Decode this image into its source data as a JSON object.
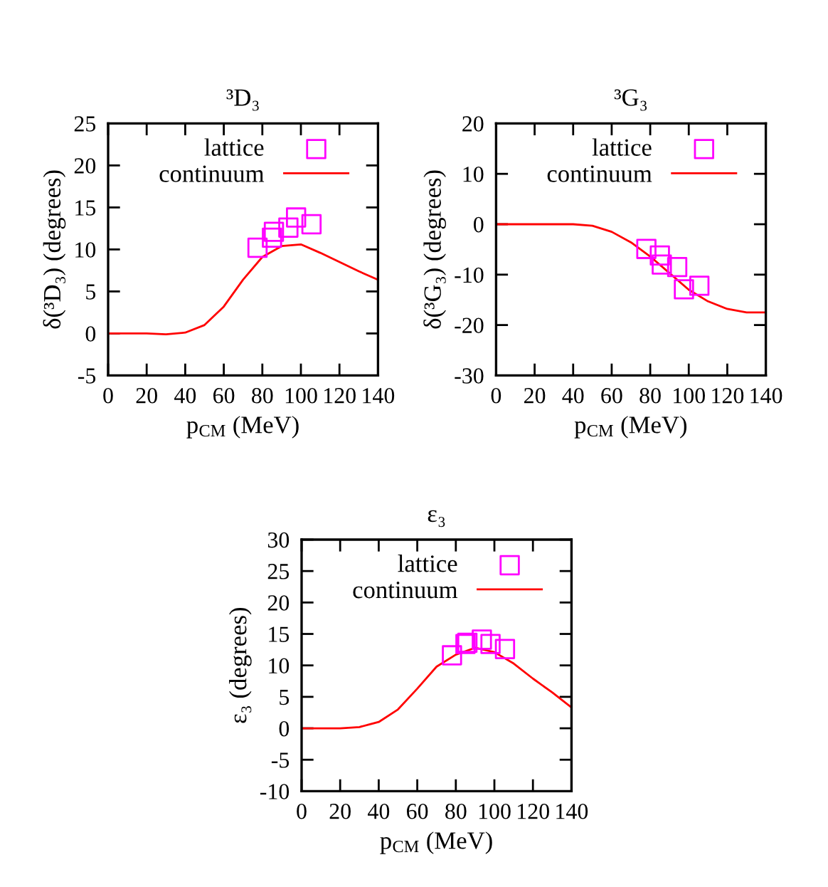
{
  "chart_data": [
    {
      "type": "line",
      "title": "³D₃",
      "xlabel": "p$_{CM}$ (MeV)",
      "ylabel": "δ(³D₃) (degrees)",
      "xlim": [
        0,
        140
      ],
      "xticks": [
        0,
        20,
        40,
        60,
        80,
        100,
        120,
        140
      ],
      "ylim": [
        -5,
        25
      ],
      "yticks": [
        -5,
        0,
        5,
        10,
        15,
        20,
        25
      ],
      "legend": "top right",
      "series": [
        {
          "name": "lattice",
          "type": "scatter",
          "marker": "square",
          "color": "#ff00ff",
          "x": [
            77.5,
            85,
            86,
            93.5,
            97.5,
            105.5
          ],
          "values": [
            10.2,
            11.4,
            12.1,
            12.6,
            13.8,
            13.0
          ]
        },
        {
          "name": "continuum",
          "type": "line",
          "marker": "none",
          "line_style": "solid",
          "color": "#ff0000",
          "x": [
            0,
            10,
            20,
            30,
            40,
            50,
            60,
            70,
            80,
            90,
            100,
            110,
            120,
            130,
            140
          ],
          "values": [
            0,
            0,
            0,
            -0.1,
            0.1,
            1.0,
            3.2,
            6.4,
            9.1,
            10.4,
            10.6,
            9.6,
            8.5,
            7.4,
            6.4
          ]
        }
      ]
    },
    {
      "type": "line",
      "title": "³G₃",
      "xlabel": "p$_{CM}$ (MeV)",
      "ylabel": "δ(³G₃) (degrees)",
      "xlim": [
        0,
        140
      ],
      "xticks": [
        0,
        20,
        40,
        60,
        80,
        100,
        120,
        140
      ],
      "ylim": [
        -30,
        20
      ],
      "yticks": [
        -30,
        -20,
        -10,
        0,
        10,
        20
      ],
      "legend": "top right",
      "series": [
        {
          "name": "lattice",
          "type": "scatter",
          "marker": "square",
          "color": "#ff00ff",
          "x": [
            78,
            85,
            86,
            94,
            97.5,
            105.5
          ],
          "values": [
            -4.9,
            -6.2,
            -8.0,
            -8.5,
            -12.9,
            -12.2
          ]
        },
        {
          "name": "continuum",
          "type": "line",
          "marker": "none",
          "line_style": "solid",
          "color": "#ff0000",
          "x": [
            0,
            10,
            20,
            30,
            40,
            50,
            60,
            70,
            80,
            90,
            100,
            110,
            120,
            130,
            140
          ],
          "values": [
            0,
            0,
            0,
            0,
            0,
            -0.3,
            -1.5,
            -3.6,
            -6.4,
            -9.7,
            -13.0,
            -15.3,
            -16.8,
            -17.5,
            -17.5
          ]
        }
      ]
    },
    {
      "type": "line",
      "title": "ε₃",
      "xlabel": "p$_{CM}$ (MeV)",
      "ylabel": "ε₃ (degrees)",
      "xlim": [
        0,
        140
      ],
      "xticks": [
        0,
        20,
        40,
        60,
        80,
        100,
        120,
        140
      ],
      "ylim": [
        -10,
        30
      ],
      "yticks": [
        -10,
        -5,
        0,
        5,
        10,
        15,
        20,
        25,
        30
      ],
      "legend": "top right",
      "series": [
        {
          "name": "lattice",
          "type": "scatter",
          "marker": "square",
          "color": "#ff00ff",
          "x": [
            78,
            85,
            86,
            93.5,
            98,
            105.5
          ],
          "values": [
            11.6,
            13.4,
            13.6,
            14.1,
            13.4,
            12.6
          ]
        },
        {
          "name": "continuum",
          "type": "line",
          "marker": "none",
          "line_style": "solid",
          "color": "#ff0000",
          "x": [
            0,
            10,
            20,
            30,
            40,
            50,
            60,
            70,
            80,
            90,
            100,
            110,
            120,
            130,
            140
          ],
          "values": [
            0,
            0,
            0,
            0.2,
            1.0,
            3.0,
            6.3,
            9.8,
            11.7,
            12.8,
            12.1,
            10.3,
            7.9,
            5.7,
            3.3
          ]
        }
      ]
    }
  ]
}
